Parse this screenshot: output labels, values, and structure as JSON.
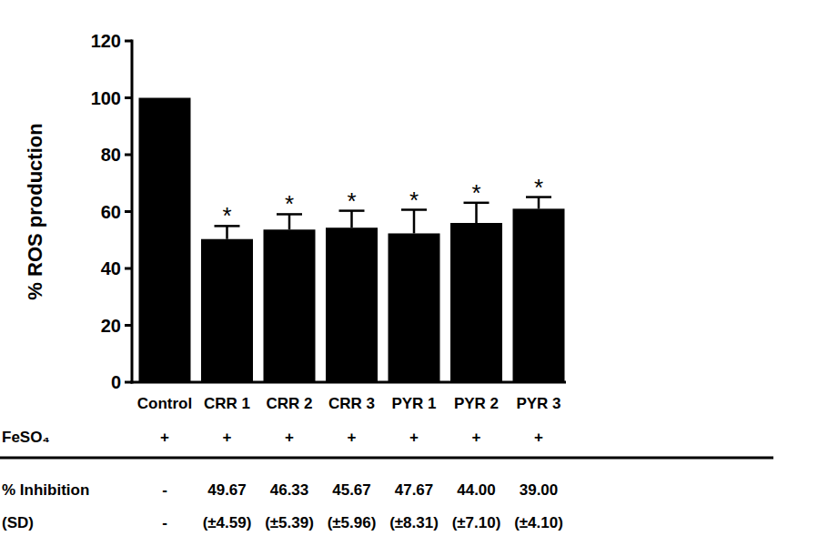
{
  "chart_data": {
    "type": "bar",
    "y_label": "% ROS production",
    "categories": [
      "Control",
      "CRR 1",
      "CRR 2",
      "CRR 3",
      "PYR 1",
      "PYR 2",
      "PYR 3"
    ],
    "values": [
      100,
      50.33,
      53.67,
      54.33,
      52.33,
      56,
      61
    ],
    "errors": [
      null,
      4.59,
      5.39,
      5.96,
      8.31,
      7.1,
      4.1
    ],
    "annotations": [
      null,
      "*",
      "*",
      "*",
      "*",
      "*",
      "*"
    ],
    "color": "#000000",
    "ylim": [
      0,
      120
    ],
    "yticks": [
      0,
      20,
      40,
      60,
      80,
      100,
      120
    ],
    "grid": false
  },
  "table": {
    "rows": [
      {
        "label": "FeSO₄",
        "cells": [
          "+",
          "+",
          "+",
          "+",
          "+",
          "+",
          "+"
        ]
      },
      {
        "label": "% Inhibition",
        "cells": [
          "-",
          "49.67",
          "46.33",
          "45.67",
          "47.67",
          "44.00",
          "39.00"
        ]
      },
      {
        "label": "(SD)",
        "cells": [
          "-",
          "(±4.59)",
          "(±5.39)",
          "(±5.96)",
          "(±8.31)",
          "(±7.10)",
          "(±4.10)"
        ]
      }
    ]
  }
}
